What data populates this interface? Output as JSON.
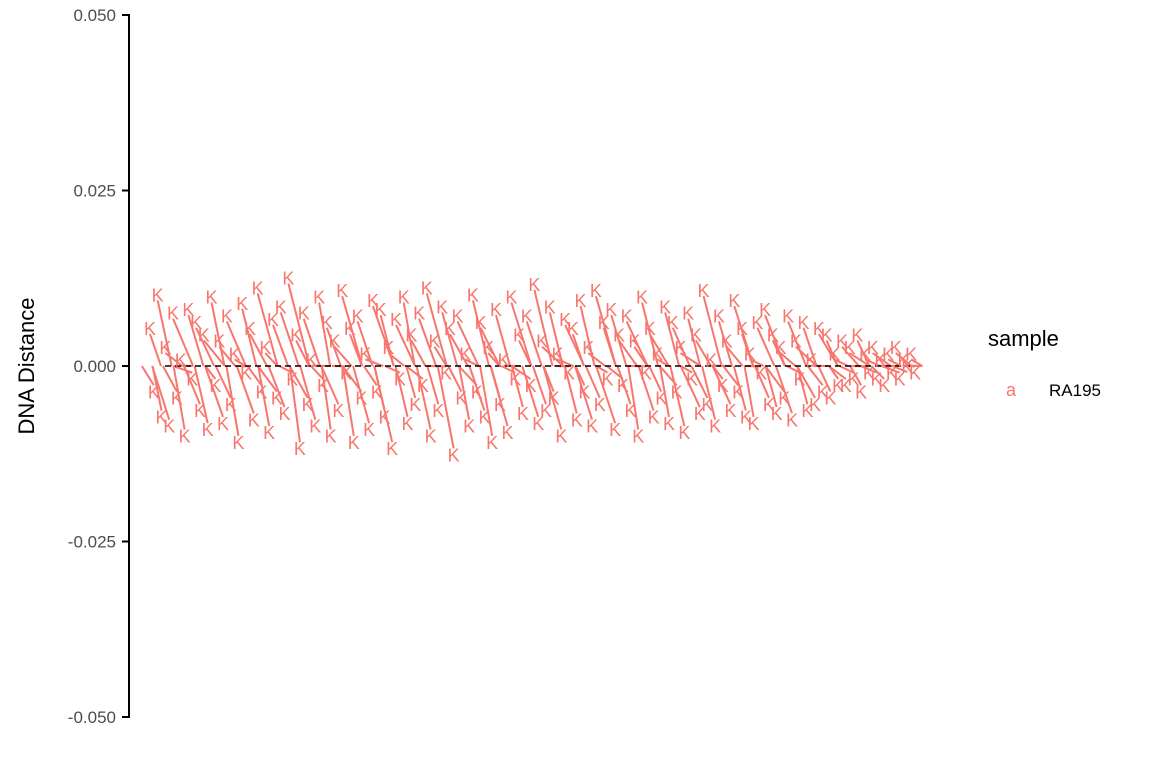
{
  "chart_data": {
    "type": "scatter",
    "title": "",
    "xlabel": "",
    "ylabel": "DNA Distance",
    "ylim": [
      -0.05,
      0.05
    ],
    "yticks": [
      "0.050",
      "0.025",
      "0.000",
      "-0.025",
      "-0.050"
    ],
    "ytick_values": [
      0.05,
      0.025,
      0.0,
      -0.025,
      -0.05
    ],
    "point_label": "K",
    "grid": false,
    "baseline": {
      "y": 0.0,
      "style": "dashed",
      "color": "#000000"
    },
    "legend": {
      "title": "sample",
      "placement": "right",
      "key_glyph": "a",
      "entries": [
        {
          "name": "RA195",
          "color": "#F8766D"
        }
      ]
    },
    "series": [
      {
        "name": "RA195",
        "color": "#F8766D",
        "x": [
          1,
          2,
          3,
          4,
          5,
          6,
          7,
          8,
          9,
          10,
          11,
          12,
          13,
          14,
          15,
          16,
          17,
          18,
          19,
          20,
          21,
          22,
          23,
          24,
          25,
          26,
          27,
          28,
          29,
          30,
          31,
          32,
          33,
          34,
          35,
          36,
          37,
          38,
          39,
          40,
          41,
          42,
          43,
          44,
          45,
          46,
          47,
          48,
          49,
          50,
          51,
          52,
          53,
          54,
          55,
          56,
          57,
          58,
          59,
          60,
          61,
          62,
          63,
          64,
          65,
          66,
          67,
          68,
          69,
          70,
          71,
          72,
          73,
          74,
          75,
          76,
          77,
          78,
          79,
          80,
          81,
          82,
          83,
          84,
          85,
          86,
          87,
          88,
          89,
          90,
          91,
          92,
          93,
          94,
          95,
          96,
          97,
          98,
          99,
          100,
          101,
          102,
          103,
          104,
          105,
          106,
          107,
          108,
          109,
          110,
          111,
          112,
          113,
          114,
          115,
          116,
          117,
          118,
          119,
          120,
          121,
          122,
          123,
          124,
          125,
          126,
          127,
          128,
          129,
          130,
          131,
          132,
          133,
          134,
          135,
          136,
          137,
          138,
          139,
          140,
          141,
          142,
          143,
          144,
          145,
          146,
          147,
          148,
          149,
          150,
          151,
          152,
          153,
          154,
          155,
          156,
          157,
          158,
          159,
          160,
          161,
          162,
          163,
          164,
          165,
          166,
          167,
          168,
          169,
          170,
          171,
          172,
          173,
          174,
          175,
          176,
          177,
          178,
          179,
          180,
          181,
          182,
          183,
          184,
          185,
          186,
          187,
          188,
          189,
          190,
          191,
          192,
          193,
          194,
          195,
          196,
          197,
          198,
          199,
          200
        ],
        "y": [
          0.0054,
          -0.0036,
          0.0102,
          -0.0072,
          0.0027,
          -0.0085,
          0.0076,
          -0.0045,
          0.0009,
          -0.0099,
          0.0081,
          -0.0018,
          0.0063,
          -0.0063,
          0.0045,
          -0.009,
          0.0099,
          -0.0027,
          0.0036,
          -0.0081,
          0.0072,
          -0.0054,
          0.0018,
          -0.0108,
          0.009,
          -0.0009,
          0.0054,
          -0.0076,
          0.0112,
          -0.0036,
          0.0027,
          -0.0094,
          0.0067,
          -0.0045,
          0.0085,
          -0.0067,
          0.0126,
          -0.0018,
          0.0045,
          -0.0117,
          0.0076,
          -0.0054,
          0.0009,
          -0.0085,
          0.0099,
          -0.0027,
          0.0063,
          -0.0099,
          0.0036,
          -0.0063,
          0.0108,
          -0.0009,
          0.0054,
          -0.0108,
          0.0072,
          -0.0045,
          0.0018,
          -0.009,
          0.0094,
          -0.0036,
          0.0081,
          -0.0072,
          0.0027,
          -0.0117,
          0.0067,
          -0.0018,
          0.0099,
          -0.0081,
          0.0045,
          -0.0054,
          0.0076,
          -0.0027,
          0.0112,
          -0.0099,
          0.0036,
          -0.0063,
          0.0085,
          -0.0009,
          0.0054,
          -0.0126,
          0.0072,
          -0.0045,
          0.0018,
          -0.0085,
          0.0102,
          -0.0036,
          0.0063,
          -0.0072,
          0.0027,
          -0.0108,
          0.0081,
          -0.0054,
          0.0009,
          -0.0094,
          0.0099,
          -0.0018,
          0.0045,
          -0.0067,
          0.0072,
          -0.0027,
          0.0117,
          -0.0081,
          0.0036,
          -0.0063,
          0.0085,
          -0.0045,
          0.0018,
          -0.0099,
          0.0067,
          -0.0009,
          0.0054,
          -0.0076,
          0.0094,
          -0.0036,
          0.0027,
          -0.0085,
          0.0108,
          -0.0054,
          0.0063,
          -0.0018,
          0.0081,
          -0.009,
          0.0045,
          -0.0027,
          0.0072,
          -0.0063,
          0.0036,
          -0.0099,
          0.0099,
          -0.0009,
          0.0054,
          -0.0072,
          0.0018,
          -0.0045,
          0.0085,
          -0.0081,
          0.0063,
          -0.0036,
          0.0027,
          -0.0094,
          0.0076,
          -0.0018,
          0.0045,
          -0.0067,
          0.0108,
          -0.0054,
          0.0009,
          -0.0085,
          0.0072,
          -0.0027,
          0.0036,
          -0.0063,
          0.0094,
          -0.0036,
          0.0054,
          -0.0072,
          0.0018,
          -0.0081,
          0.0063,
          -0.0009,
          0.0081,
          -0.0054,
          0.0045,
          -0.0067,
          0.0027,
          -0.0045,
          0.0072,
          -0.0076,
          0.0036,
          -0.0018,
          0.0063,
          -0.0063,
          0.0009,
          -0.0054,
          0.0054,
          -0.0036,
          0.0045,
          -0.0045,
          0.0018,
          -0.0027,
          0.0036,
          -0.0027,
          0.0027,
          -0.0018,
          0.0045,
          -0.0036,
          0.0018,
          -0.0009,
          0.0027,
          -0.0018,
          0.0009,
          -0.0027,
          0.0018,
          -0.0009,
          0.0027,
          -0.0018,
          0.0009,
          0.0,
          0.0018,
          -0.0009
        ]
      }
    ]
  }
}
